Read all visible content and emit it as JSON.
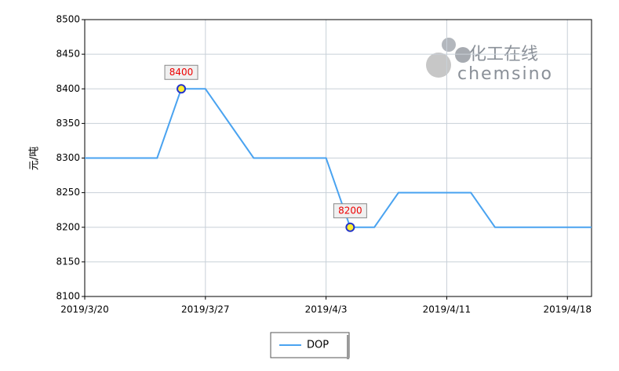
{
  "chart_data": {
    "type": "line",
    "y_label": "元/吨",
    "watermark": {
      "cn": "化工在线",
      "en": "chemsino"
    },
    "categories": [
      "2019/3/20",
      null,
      null,
      null,
      null,
      "2019/3/27",
      null,
      null,
      null,
      null,
      "2019/4/3",
      null,
      null,
      null,
      null,
      "2019/4/11",
      null,
      null,
      null,
      null,
      "2019/4/18",
      null
    ],
    "series": [
      {
        "name": "DOP",
        "color": "#4aa3f0",
        "values": [
          8300,
          8300,
          8300,
          8300,
          8400,
          8400,
          8350,
          8300,
          8300,
          8300,
          8300,
          8200,
          8200,
          8250,
          8250,
          8250,
          8250,
          8200,
          8200,
          8200,
          8200,
          8200
        ]
      }
    ],
    "labeled_points": [
      4,
      11
    ],
    "ylim": [
      8100,
      8500
    ],
    "yticks": [
      8100,
      8150,
      8200,
      8250,
      8300,
      8350,
      8400,
      8450,
      8500
    ],
    "grid": true
  }
}
